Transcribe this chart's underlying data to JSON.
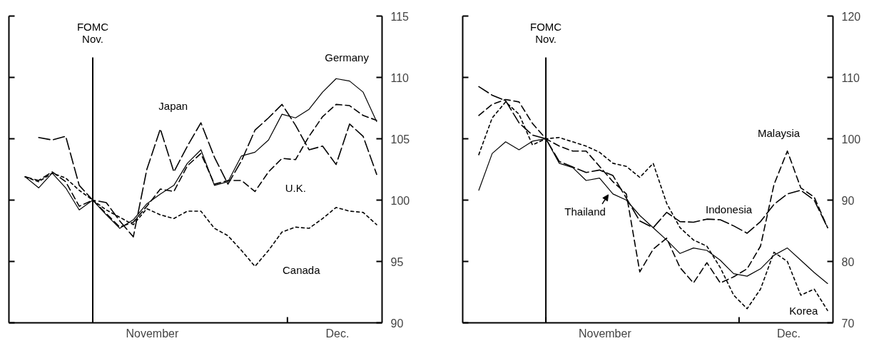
{
  "chart_data": [
    {
      "type": "line",
      "categories": [
        null,
        null,
        null,
        null,
        null,
        null,
        null,
        null,
        null,
        null,
        null,
        null,
        null,
        null,
        null,
        null,
        null,
        null,
        null,
        null,
        null,
        null,
        null,
        null,
        null,
        null,
        null
      ],
      "ylim": [
        90,
        115
      ],
      "yticks": [
        90,
        95,
        100,
        105,
        110,
        115
      ],
      "annotations": [
        "FOMC\nNov.",
        "November",
        "Dec."
      ],
      "grid": false,
      "series": [
        {
          "name": "Germany",
          "color": "#000000",
          "line_style": "solid",
          "values": [
            101.9,
            101.0,
            102.2,
            101.0,
            99.2,
            100.0,
            98.8,
            97.7,
            98.4,
            99.7,
            100.5,
            101.2,
            103.0,
            104.1,
            101.2,
            101.5,
            103.6,
            103.9,
            104.9,
            107.0,
            106.7,
            107.4,
            108.8,
            109.9,
            109.7,
            108.8,
            106.4
          ]
        },
        {
          "name": "Japan",
          "color": "#000000",
          "line_style": "longdash",
          "values": [
            null,
            105.1,
            104.9,
            105.2,
            101.2,
            100.0,
            99.8,
            98.3,
            97.0,
            102.5,
            105.8,
            102.3,
            104.4,
            106.3,
            103.5,
            101.3,
            103.2,
            105.7,
            106.7,
            107.8,
            106.1,
            104.1,
            104.4,
            102.9,
            106.2,
            105.2,
            102.1
          ]
        },
        {
          "name": "U.K.",
          "color": "#000000",
          "line_style": "dashed",
          "values": [
            101.9,
            101.6,
            102.3,
            101.5,
            99.5,
            100.0,
            98.9,
            97.8,
            98.2,
            99.5,
            100.9,
            100.7,
            102.8,
            103.8,
            101.3,
            101.6,
            101.6,
            100.7,
            102.3,
            103.4,
            103.3,
            105.2,
            106.8,
            107.8,
            107.7,
            106.9,
            106.5
          ]
        },
        {
          "name": "Canada",
          "color": "#000000",
          "line_style": "dotted",
          "values": [
            101.9,
            101.5,
            102.2,
            101.8,
            100.8,
            100.0,
            99.2,
            98.6,
            98.0,
            99.3,
            98.8,
            98.5,
            99.1,
            99.1,
            97.7,
            97.1,
            95.9,
            94.6,
            95.9,
            97.4,
            97.8,
            97.7,
            98.5,
            99.4,
            99.1,
            99.0,
            98.0
          ]
        }
      ]
    },
    {
      "type": "line",
      "categories": [
        null,
        null,
        null,
        null,
        null,
        null,
        null,
        null,
        null,
        null,
        null,
        null,
        null,
        null,
        null,
        null,
        null,
        null,
        null,
        null,
        null,
        null,
        null,
        null,
        null,
        null,
        null
      ],
      "ylim": [
        70,
        120
      ],
      "yticks": [
        70,
        80,
        90,
        100,
        110,
        120
      ],
      "annotations": [
        "FOMC\nNov.",
        "November",
        "Dec."
      ],
      "grid": false,
      "series": [
        {
          "name": "Thailand",
          "color": "#000000",
          "line_style": "solid",
          "values": [
            91.6,
            97.6,
            99.5,
            98.2,
            99.6,
            100.0,
            96.0,
            95.3,
            93.2,
            93.6,
            91.0,
            90.0,
            87.5,
            85.5,
            83.5,
            81.3,
            82.2,
            81.8,
            80.2,
            78.0,
            77.6,
            78.8,
            81.0,
            82.2,
            80.2,
            78.2,
            76.4
          ]
        },
        {
          "name": "Indonesia",
          "color": "#000000",
          "line_style": "longdash",
          "values": [
            108.5,
            107.1,
            106.2,
            102.6,
            100.6,
            100.0,
            96.3,
            95.4,
            94.5,
            94.9,
            94.0,
            90.3,
            86.6,
            85.5,
            88.0,
            86.5,
            86.4,
            86.9,
            86.8,
            85.8,
            84.6,
            86.5,
            89.3,
            91.0,
            91.6,
            90.0,
            85.5
          ]
        },
        {
          "name": "Malaysia",
          "color": "#000000",
          "line_style": "dashed",
          "values": [
            103.8,
            105.6,
            106.4,
            106.0,
            102.5,
            100.0,
            98.8,
            98.0,
            98.0,
            95.5,
            93.0,
            91.0,
            78.3,
            82.0,
            83.8,
            79.0,
            76.5,
            79.8,
            76.5,
            77.5,
            78.8,
            82.5,
            92.5,
            98.0,
            92.0,
            90.5,
            85.5
          ]
        },
        {
          "name": "Korea",
          "color": "#000000",
          "line_style": "dotted",
          "values": [
            97.4,
            103.4,
            106.0,
            104.0,
            99.0,
            100.0,
            100.2,
            99.5,
            98.8,
            97.8,
            96.0,
            95.5,
            93.7,
            96.0,
            89.5,
            85.5,
            83.5,
            82.5,
            79.0,
            74.5,
            72.3,
            75.5,
            81.5,
            80.0,
            74.5,
            75.5,
            72.0
          ]
        }
      ]
    }
  ]
}
